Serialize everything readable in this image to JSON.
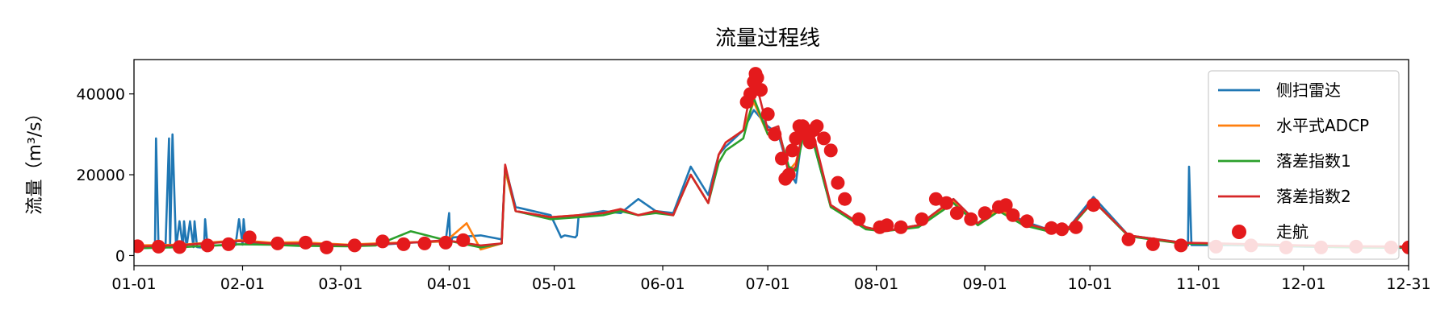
{
  "chart_data": {
    "type": "line",
    "title": "流量过程线",
    "xlabel": "",
    "ylabel": "流量（m³/s）",
    "x_ticks": [
      "01-01",
      "02-01",
      "03-01",
      "04-01",
      "05-01",
      "06-01",
      "07-01",
      "08-01",
      "09-01",
      "10-01",
      "11-01",
      "12-01",
      "12-31"
    ],
    "x_tick_days": [
      1,
      32,
      60,
      91,
      121,
      152,
      182,
      213,
      244,
      274,
      305,
      335,
      365
    ],
    "xlim": [
      1,
      365
    ],
    "y_ticks": [
      0,
      20000,
      40000
    ],
    "ylim": [
      -2500,
      48500
    ],
    "grid": false,
    "legend_position": "top-right",
    "series": [
      {
        "name": "侧扫雷达",
        "color": "#1f77b4",
        "kind": "line",
        "x": [
          1,
          5,
          7,
          7.3,
          8,
          10,
          11,
          11.3,
          12,
          13,
          14,
          15,
          15.3,
          16,
          17,
          18,
          18.3,
          19,
          20,
          21,
          21.3,
          22,
          23,
          30,
          31,
          32,
          32.3,
          33,
          40,
          48,
          55,
          62,
          70,
          80,
          90,
          91,
          91.3,
          92,
          100,
          106,
          107,
          110,
          120,
          123,
          123.5,
          124,
          127,
          127.5,
          128,
          135,
          140,
          145,
          150,
          155,
          160,
          165,
          168,
          170,
          175,
          178,
          182,
          185,
          188,
          190,
          192,
          195,
          200,
          210,
          215,
          225,
          235,
          242,
          248,
          255,
          262,
          268,
          275,
          285,
          298,
          301,
          302,
          302.3,
          303,
          320,
          335,
          350,
          365
        ],
        "y": [
          1800,
          1900,
          2000,
          29000,
          2000,
          2000,
          29000,
          2000,
          30000,
          2000,
          8500,
          2000,
          8500,
          2100,
          8500,
          2100,
          8500,
          2100,
          2000,
          2200,
          9000,
          2300,
          2500,
          2600,
          9000,
          2700,
          9000,
          2800,
          3000,
          2800,
          2500,
          2500,
          2600,
          3200,
          3500,
          10500,
          3000,
          4500,
          5000,
          4000,
          22000,
          12000,
          10000,
          4500,
          4800,
          5000,
          4500,
          5000,
          10000,
          11000,
          10500,
          14000,
          11000,
          10500,
          22000,
          15000,
          25000,
          27000,
          31000,
          36000,
          32000,
          30000,
          21000,
          18000,
          31000,
          28000,
          12000,
          7000,
          6000,
          7500,
          14000,
          8000,
          12000,
          8500,
          6500,
          7000,
          14500,
          5000,
          3500,
          2800,
          2500,
          22000,
          2600,
          2500,
          2200,
          2000,
          1900
        ]
      },
      {
        "name": "水平式ADCP",
        "color": "#ff7f0e",
        "kind": "line",
        "x": [
          1,
          15,
          31,
          40,
          48,
          62,
          70,
          80,
          90,
          96,
          100,
          106,
          107,
          110,
          120,
          128,
          135,
          140,
          145,
          150,
          155,
          160,
          165,
          168,
          170,
          175,
          178,
          182,
          185,
          188,
          190,
          192,
          195,
          200,
          210,
          215,
          225,
          235,
          242,
          248,
          255,
          262,
          268,
          275,
          285,
          300,
          320,
          335,
          350,
          365
        ],
        "y": [
          2500,
          2700,
          3800,
          3200,
          3300,
          2700,
          3000,
          3300,
          3500,
          8000,
          1500,
          3000,
          21000,
          11000,
          9500,
          10000,
          10500,
          11500,
          10000,
          11000,
          10000,
          20000,
          13000,
          25000,
          28000,
          31000,
          38000,
          30000,
          31000,
          21000,
          23000,
          30000,
          29000,
          12000,
          7000,
          6000,
          7500,
          13500,
          8000,
          11500,
          8000,
          6000,
          6500,
          13500,
          5000,
          3200,
          2800,
          2500,
          2300,
          2200
        ]
      },
      {
        "name": "落差指数1",
        "color": "#2ca02c",
        "kind": "line",
        "x": [
          1,
          15,
          31,
          40,
          48,
          62,
          70,
          80,
          90,
          100,
          106,
          107,
          110,
          120,
          128,
          135,
          140,
          145,
          150,
          155,
          160,
          165,
          168,
          170,
          175,
          178,
          182,
          185,
          188,
          190,
          192,
          195,
          200,
          210,
          215,
          225,
          235,
          242,
          248,
          255,
          262,
          268,
          275,
          285,
          300,
          320,
          335,
          350,
          365
        ],
        "y": [
          1800,
          2100,
          2800,
          2700,
          2400,
          2300,
          2500,
          6000,
          3800,
          2000,
          3000,
          22000,
          11000,
          9000,
          9500,
          10000,
          11000,
          10000,
          10500,
          10000,
          20000,
          13000,
          23000,
          26000,
          29000,
          39000,
          30000,
          31000,
          22000,
          21000,
          29000,
          28000,
          12000,
          6500,
          6000,
          7000,
          13000,
          7500,
          11000,
          7500,
          6000,
          6500,
          13500,
          4800,
          3000,
          2600,
          2300,
          2000,
          2000
        ]
      },
      {
        "name": "落差指数2",
        "color": "#d62728",
        "kind": "line",
        "x": [
          1,
          15,
          31,
          40,
          48,
          62,
          70,
          80,
          90,
          100,
          106,
          107,
          110,
          120,
          128,
          135,
          140,
          145,
          150,
          155,
          160,
          165,
          168,
          170,
          175,
          178,
          182,
          185,
          188,
          190,
          192,
          195,
          200,
          210,
          215,
          225,
          235,
          242,
          248,
          255,
          262,
          268,
          275,
          285,
          300,
          320,
          335,
          350,
          365
        ],
        "y": [
          2200,
          2600,
          3600,
          3000,
          3000,
          2600,
          2800,
          3200,
          3800,
          2500,
          3000,
          22500,
          11000,
          9500,
          10000,
          10500,
          11500,
          10000,
          11000,
          10000,
          20000,
          13000,
          25000,
          28000,
          31000,
          45000,
          31000,
          32000,
          20000,
          22000,
          31000,
          30000,
          12500,
          7000,
          6000,
          7500,
          14000,
          8000,
          12500,
          8000,
          6500,
          7000,
          13500,
          5000,
          3200,
          2800,
          2500,
          2300,
          2200
        ]
      },
      {
        "name": "走航",
        "color": "#e41a1c",
        "kind": "scatter",
        "x": [
          2,
          8,
          14,
          22,
          28,
          34,
          42,
          50,
          56,
          64,
          72,
          78,
          84,
          90,
          95,
          176,
          177,
          178,
          178.5,
          179,
          180,
          182,
          184,
          186,
          187,
          188,
          189,
          190,
          191,
          192,
          193,
          194,
          195,
          196,
          198,
          200,
          202,
          204,
          208,
          214,
          216,
          220,
          226,
          230,
          233,
          236,
          240,
          244,
          248,
          250,
          252,
          256,
          263,
          266,
          270,
          275,
          285,
          292,
          300,
          310,
          320,
          330,
          340,
          350,
          360,
          365
        ],
        "y": [
          2300,
          2200,
          2100,
          2500,
          2800,
          4500,
          3000,
          3200,
          2000,
          2500,
          3500,
          2800,
          3000,
          3200,
          3800,
          38000,
          40000,
          43000,
          45000,
          44000,
          41000,
          35000,
          30000,
          24000,
          19000,
          20000,
          26000,
          29000,
          32000,
          32000,
          30000,
          28000,
          31000,
          32000,
          29000,
          26000,
          18000,
          14000,
          9000,
          7000,
          7500,
          7000,
          9000,
          14000,
          13000,
          10500,
          9000,
          10500,
          12000,
          12500,
          10000,
          8500,
          6800,
          6500,
          7000,
          12500,
          4000,
          2800,
          2500,
          2200,
          2500,
          2000,
          2000,
          2200,
          2000,
          2000
        ]
      }
    ]
  }
}
